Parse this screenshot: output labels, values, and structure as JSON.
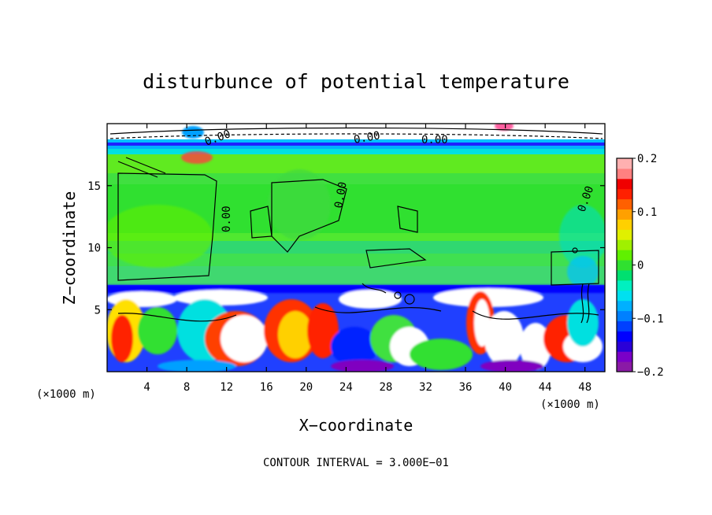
{
  "chart_data": {
    "type": "heatmap",
    "title": "disturbunce of potential temperature",
    "xlabel": "X−coordinate",
    "ylabel": "Z−coordinate",
    "x_unit": "(×1000 m)",
    "footer": "CONTOUR INTERVAL = 3.000E−01",
    "xlim": [
      0,
      50
    ],
    "ylim": [
      0,
      20
    ],
    "x_ticks": [
      4,
      8,
      12,
      16,
      20,
      24,
      28,
      32,
      36,
      40,
      44,
      48
    ],
    "y_ticks": [
      5,
      10,
      15
    ],
    "colorbar": {
      "range": [
        -0.2,
        0.2
      ],
      "ticks": [
        {
          "value": 0.2,
          "label": "0.2"
        },
        {
          "value": 0.1,
          "label": "0.1"
        },
        {
          "value": 0,
          "label": "0"
        },
        {
          "value": -0.1,
          "label": "−0.1"
        },
        {
          "value": -0.2,
          "label": "−0.2"
        }
      ],
      "colors": [
        "#8a1aa6",
        "#7a00c8",
        "#2a00d8",
        "#0000ff",
        "#0040ff",
        "#0080ff",
        "#00b0ff",
        "#00e0f0",
        "#00f0c0",
        "#00e070",
        "#30e030",
        "#60f000",
        "#a0f000",
        "#e0f000",
        "#ffd000",
        "#ffa000",
        "#ff6000",
        "#ff2000",
        "#f00000",
        "#ff8080",
        "#ffb0b0"
      ]
    },
    "contour_labels": [
      "0.00",
      "0.00",
      "0.00",
      "0.00",
      "0.00",
      "0.00"
    ]
  }
}
